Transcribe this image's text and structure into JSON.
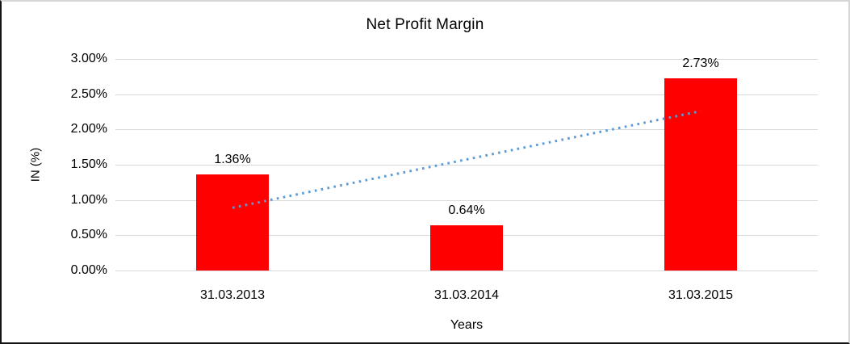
{
  "chart_data": {
    "type": "bar",
    "title": "Net Profit Margin",
    "xlabel": "Years",
    "ylabel": "IN (%)",
    "categories": [
      "31.03.2013",
      "31.03.2014",
      "31.03.2015"
    ],
    "values": [
      1.36,
      0.64,
      2.73
    ],
    "value_labels": [
      "1.36%",
      "0.64%",
      "2.73%"
    ],
    "ylim": [
      0,
      3
    ],
    "ytick_values": [
      0,
      0.5,
      1.0,
      1.5,
      2.0,
      2.5,
      3.0
    ],
    "ytick_labels": [
      "0.00%",
      "0.50%",
      "1.00%",
      "1.50%",
      "2.00%",
      "2.50%",
      "3.00%"
    ],
    "grid": "horizontal",
    "legend": "none",
    "bar_color": "#ff0000",
    "gridline_color": "#d9d9d9",
    "text_color": "#000000",
    "trendline": {
      "type": "linear-dotted",
      "color": "#5b9bd5",
      "start_value_pct": 0.89,
      "end_value_pct": 2.26,
      "span": "center of first bar to center of last bar"
    }
  }
}
